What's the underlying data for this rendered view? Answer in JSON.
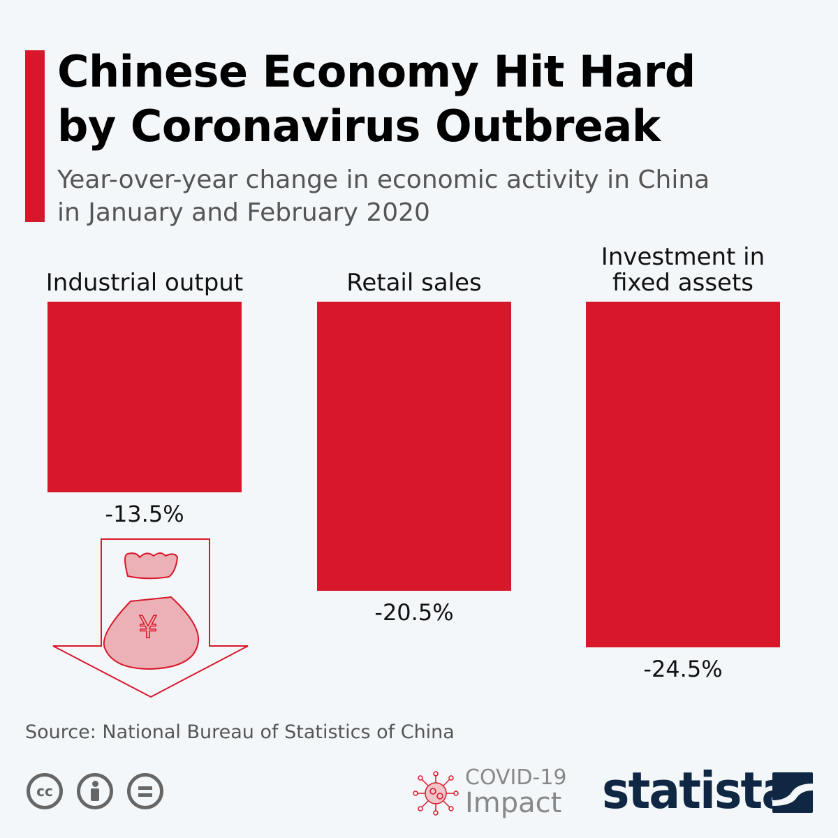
{
  "header": {
    "title_line1": "Chinese Economy Hit Hard",
    "title_line2": "by Coronavirus Outbreak",
    "subtitle_line1": "Year-over-year change in economic activity in China",
    "subtitle_line2": "in January and February 2020"
  },
  "chart_data": {
    "type": "bar",
    "orientation": "vertical, hanging downward from zero",
    "categories": [
      "Industrial output",
      "Retail sales",
      "Investment in fixed assets"
    ],
    "category_lines": [
      [
        "Industrial output"
      ],
      [
        "Retail sales"
      ],
      [
        "Investment in",
        "fixed assets"
      ]
    ],
    "values": [
      -13.5,
      -20.5,
      -24.5
    ],
    "value_labels": [
      "-13.5%",
      "-20.5%",
      "-24.5%"
    ],
    "unit": "%",
    "grid": false,
    "color": "#d7182a"
  },
  "footer": {
    "source": "Source: National Bureau of Statistics of China",
    "covid_line1": "COVID-19",
    "covid_line2": "Impact",
    "brand": "statista",
    "license_icons": [
      "cc-icon",
      "attribution-icon",
      "no-derivatives-icon"
    ]
  },
  "colors": {
    "accent": "#d7182a",
    "background": "#f4f7fa",
    "brand": "#0f2742"
  }
}
